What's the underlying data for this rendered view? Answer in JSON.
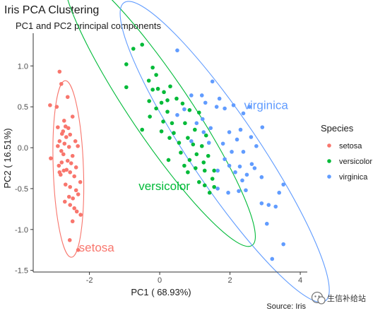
{
  "chart_data": {
    "type": "scatter",
    "title": "Iris PCA Clustering",
    "subtitle": "PC1 and PC2 principal components",
    "xlabel": "PC1 ( 68.93%)",
    "ylabel": "PC2 ( 16.51%)",
    "xlim": [
      -3.6,
      4.2
    ],
    "ylim": [
      -1.52,
      1.4
    ],
    "x_ticks": [
      -2,
      0,
      2,
      4
    ],
    "x_tick_labels": [
      "-2",
      "0",
      "2",
      "4"
    ],
    "y_ticks": [
      1.0,
      0.5,
      0.0,
      -0.5,
      -1.0,
      -1.5
    ],
    "y_tick_labels": [
      "1.0",
      "0.5",
      "0.0",
      "-0.5",
      "-1.0",
      "-1.5"
    ],
    "grid": false,
    "legend": {
      "title": "Species",
      "position": "right",
      "entries": [
        "setosa",
        "versicolor",
        "virginica"
      ]
    },
    "caption": "Source: Iris",
    "series": [
      {
        "name": "setosa",
        "color": "#F8766D",
        "label": "setosa",
        "label_at": [
          -2.3,
          -1.27
        ],
        "ellipse": {
          "cx": -2.6,
          "cy": -0.26,
          "rx": 0.43,
          "ry": 1.08,
          "rotate_deg": -2
        },
        "points": [
          [
            -2.85,
            0.93
          ],
          [
            -2.8,
            0.78
          ],
          [
            -2.62,
            0.62
          ],
          [
            -3.12,
            0.52
          ],
          [
            -2.93,
            0.5
          ],
          [
            -2.48,
            0.38
          ],
          [
            -2.72,
            0.33
          ],
          [
            -2.9,
            0.25
          ],
          [
            -2.68,
            0.26
          ],
          [
            -2.6,
            0.24
          ],
          [
            -2.75,
            0.2
          ],
          [
            -2.78,
            0.17
          ],
          [
            -2.55,
            0.16
          ],
          [
            -2.66,
            0.13
          ],
          [
            -2.4,
            0.08
          ],
          [
            -2.85,
            0.08
          ],
          [
            -2.71,
            0.05
          ],
          [
            -2.9,
            0.02
          ],
          [
            -2.58,
            0.01
          ],
          [
            -2.33,
            0.02
          ],
          [
            -2.8,
            -0.04
          ],
          [
            -2.74,
            -0.08
          ],
          [
            -2.48,
            -0.1
          ],
          [
            -3.1,
            -0.13
          ],
          [
            -2.62,
            -0.16
          ],
          [
            -2.79,
            -0.18
          ],
          [
            -2.52,
            -0.19
          ],
          [
            -2.87,
            -0.22
          ],
          [
            -2.38,
            -0.24
          ],
          [
            -2.65,
            -0.27
          ],
          [
            -2.73,
            -0.28
          ],
          [
            -2.55,
            -0.3
          ],
          [
            -2.82,
            -0.33
          ],
          [
            -2.43,
            -0.35
          ],
          [
            -2.26,
            -0.42
          ],
          [
            -2.68,
            -0.45
          ],
          [
            -2.55,
            -0.48
          ],
          [
            -2.38,
            -0.52
          ],
          [
            -2.32,
            -0.57
          ],
          [
            -2.58,
            -0.6
          ],
          [
            -2.47,
            -0.62
          ],
          [
            -2.7,
            -0.66
          ],
          [
            -2.55,
            -0.7
          ],
          [
            -2.43,
            -0.74
          ],
          [
            -2.36,
            -0.78
          ],
          [
            -2.25,
            -0.82
          ],
          [
            -2.48,
            -0.9
          ],
          [
            -2.56,
            -1.13
          ],
          [
            -2.32,
            -1.25
          ],
          [
            -2.85,
            -0.3
          ]
        ]
      },
      {
        "name": "versicolor",
        "color": "#00BA38",
        "label": "versicolor",
        "label_at": [
          -0.6,
          -0.52
        ],
        "ellipse": {
          "cx": 0.0,
          "cy": 0.48,
          "rx": 0.85,
          "ry": 2.02,
          "rotate_deg": -34
        },
        "points": [
          [
            -0.5,
            1.26
          ],
          [
            -0.75,
            1.21
          ],
          [
            -0.95,
            1.02
          ],
          [
            -0.2,
            0.98
          ],
          [
            -0.1,
            0.89
          ],
          [
            -0.31,
            0.82
          ],
          [
            -0.2,
            0.71
          ],
          [
            -0.05,
            0.72
          ],
          [
            0.12,
            0.68
          ],
          [
            0.3,
            0.75
          ],
          [
            -0.95,
            0.74
          ],
          [
            0.22,
            0.58
          ],
          [
            -0.3,
            0.57
          ],
          [
            0.05,
            0.55
          ],
          [
            0.48,
            0.6
          ],
          [
            0.65,
            0.54
          ],
          [
            -0.1,
            0.48
          ],
          [
            0.22,
            0.44
          ],
          [
            0.85,
            0.46
          ],
          [
            1.12,
            0.43
          ],
          [
            -0.28,
            0.38
          ],
          [
            0.1,
            0.32
          ],
          [
            0.35,
            0.3
          ],
          [
            0.72,
            0.3
          ],
          [
            1.0,
            0.22
          ],
          [
            -0.5,
            0.22
          ],
          [
            0.05,
            0.2
          ],
          [
            0.4,
            0.18
          ],
          [
            0.28,
            0.12
          ],
          [
            0.8,
            0.12
          ],
          [
            1.32,
            0.15
          ],
          [
            0.55,
            0.06
          ],
          [
            0.95,
            0.04
          ],
          [
            1.2,
            0.02
          ],
          [
            0.6,
            -0.06
          ],
          [
            1.05,
            -0.08
          ],
          [
            1.38,
            -0.1
          ],
          [
            0.85,
            -0.15
          ],
          [
            1.25,
            -0.18
          ],
          [
            1.02,
            -0.25
          ],
          [
            1.28,
            -0.28
          ],
          [
            0.8,
            -0.3
          ],
          [
            1.55,
            -0.28
          ],
          [
            1.12,
            -0.42
          ],
          [
            1.28,
            -0.46
          ],
          [
            1.55,
            -0.48
          ],
          [
            1.42,
            -0.55
          ],
          [
            0.25,
            -0.15
          ],
          [
            0.7,
            -0.22
          ],
          [
            1.5,
            -0.38
          ]
        ]
      },
      {
        "name": "virginica",
        "color": "#619CFF",
        "label": "virginica",
        "label_at": [
          2.4,
          0.47
        ],
        "ellipse": {
          "cx": 1.85,
          "cy": -0.05,
          "rx": 0.98,
          "ry": 2.2,
          "rotate_deg": -34
        },
        "points": [
          [
            0.5,
            1.19
          ],
          [
            1.5,
            0.81
          ],
          [
            1.2,
            0.64
          ],
          [
            1.7,
            0.6
          ],
          [
            0.9,
            0.64
          ],
          [
            1.3,
            0.55
          ],
          [
            2.1,
            0.52
          ],
          [
            2.55,
            0.5
          ],
          [
            1.62,
            0.5
          ],
          [
            1.85,
            0.48
          ],
          [
            0.7,
            0.47
          ],
          [
            2.38,
            0.42
          ],
          [
            1.22,
            0.35
          ],
          [
            0.5,
            0.4
          ],
          [
            2.92,
            0.25
          ],
          [
            1.05,
            0.3
          ],
          [
            1.45,
            0.24
          ],
          [
            2.3,
            0.22
          ],
          [
            1.25,
            0.19
          ],
          [
            1.98,
            0.19
          ],
          [
            2.6,
            0.13
          ],
          [
            2.2,
            0.1
          ],
          [
            0.9,
            0.08
          ],
          [
            1.4,
            0.06
          ],
          [
            1.8,
            0.05
          ],
          [
            2.75,
            0.02
          ],
          [
            2.05,
            -0.05
          ],
          [
            2.38,
            -0.05
          ],
          [
            1.85,
            -0.14
          ],
          [
            2.62,
            -0.2
          ],
          [
            1.98,
            -0.22
          ],
          [
            2.28,
            -0.23
          ],
          [
            2.7,
            -0.25
          ],
          [
            1.65,
            -0.28
          ],
          [
            2.15,
            -0.3
          ],
          [
            2.48,
            -0.33
          ],
          [
            2.9,
            -0.36
          ],
          [
            2.35,
            -0.4
          ],
          [
            1.65,
            -0.5
          ],
          [
            2.45,
            -0.52
          ],
          [
            2.25,
            -0.53
          ],
          [
            1.95,
            -0.55
          ],
          [
            3.52,
            -0.45
          ],
          [
            3.4,
            -0.55
          ],
          [
            2.9,
            -0.68
          ],
          [
            3.1,
            -0.7
          ],
          [
            3.3,
            -0.72
          ],
          [
            3.05,
            -0.93
          ],
          [
            3.52,
            -1.18
          ],
          [
            3.2,
            -1.36
          ]
        ]
      }
    ]
  },
  "watermark": {
    "text": "生信补给站",
    "icon": "wechat-icon"
  }
}
